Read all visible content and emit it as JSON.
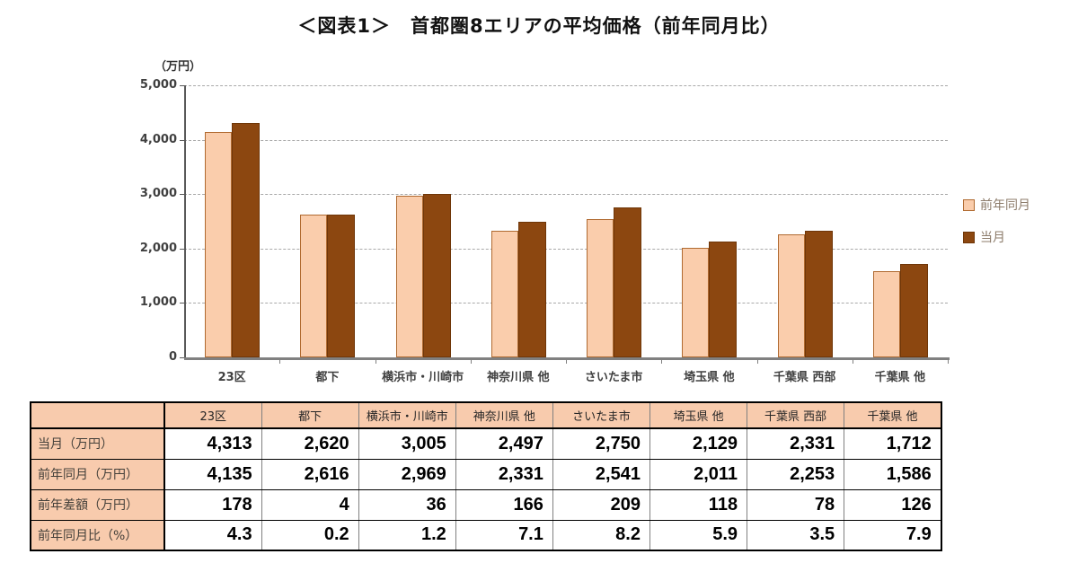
{
  "title": "＜図表1＞　首都圏8エリアの平均価格（前年同月比）",
  "chart_data": {
    "type": "bar",
    "title": "首都圏8エリアの平均価格（前年同月比）",
    "unit_label": "（万円）",
    "categories": [
      "23区",
      "都下",
      "横浜市・川崎市",
      "神奈川県 他",
      "さいたま市",
      "埼玉県 他",
      "千葉県 西部",
      "千葉県 他"
    ],
    "series": [
      {
        "name": "前年同月",
        "values": [
          4135,
          2616,
          2969,
          2331,
          2541,
          2011,
          2253,
          1586
        ],
        "fill": "#facdac",
        "border": "#b06a30"
      },
      {
        "name": "当月",
        "values": [
          4313,
          2620,
          3005,
          2497,
          2750,
          2129,
          2331,
          1712
        ],
        "fill": "#8c4710",
        "border": "#6f3608"
      }
    ],
    "ylim": [
      0,
      5000
    ],
    "ytick_interval": 1000,
    "yticks": [
      "5,000",
      "4,000",
      "3,000",
      "2,000",
      "1,000",
      "0"
    ],
    "grid": "dashed-horizontal",
    "legend_position": "right"
  },
  "table": {
    "header": [
      "",
      "23区",
      "都下",
      "横浜市・川崎市",
      "神奈川県 他",
      "さいたま市",
      "埼玉県 他",
      "千葉県 西部",
      "千葉県 他"
    ],
    "rows": [
      {
        "label": "当月（万円）",
        "values": [
          "4,313",
          "2,620",
          "3,005",
          "2,497",
          "2,750",
          "2,129",
          "2,331",
          "1,712"
        ]
      },
      {
        "label": "前年同月（万円）",
        "values": [
          "4,135",
          "2,616",
          "2,969",
          "2,331",
          "2,541",
          "2,011",
          "2,253",
          "1,586"
        ]
      },
      {
        "label": "前年差額（万円）",
        "values": [
          "178",
          "4",
          "36",
          "166",
          "209",
          "118",
          "78",
          "126"
        ]
      },
      {
        "label": "前年同月比（%）",
        "values": [
          "4.3",
          "0.2",
          "1.2",
          "7.1",
          "8.2",
          "5.9",
          "3.5",
          "7.9"
        ]
      }
    ]
  },
  "colors": {
    "series_prev_year_fill": "#facdac",
    "series_prev_year_border": "#b06a30",
    "series_current_fill": "#8c4710",
    "series_current_border": "#6f3608",
    "table_header_bg": "#f8cbad",
    "gridline": "#a9a9a9",
    "axis": "#808080",
    "tick_text": "#404040",
    "legend_text": "#8c7b6a"
  }
}
